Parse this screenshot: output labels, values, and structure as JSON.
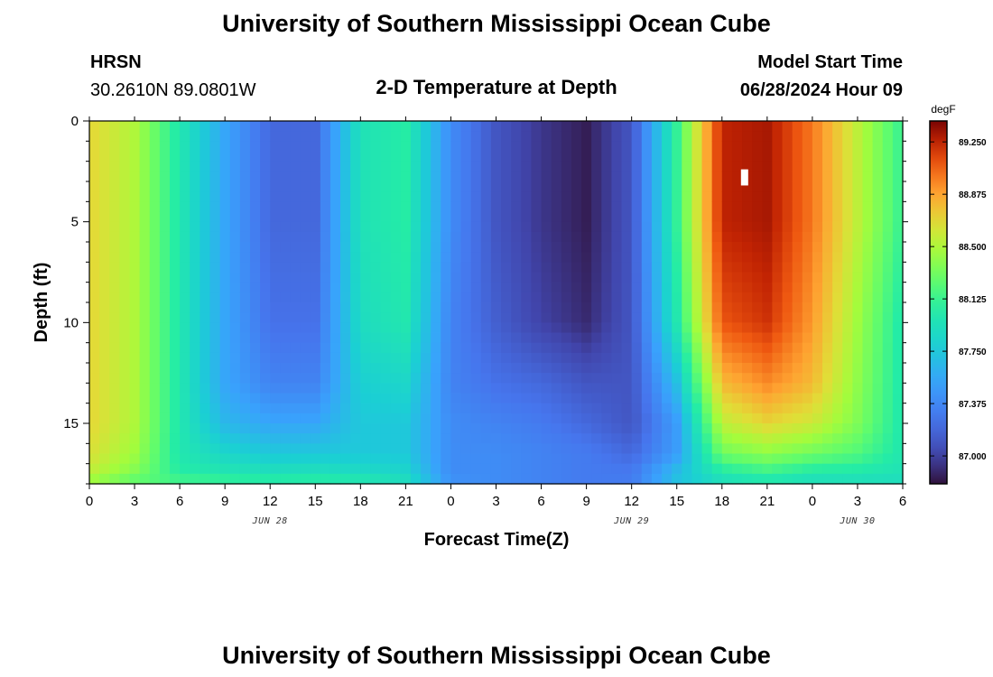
{
  "header": {
    "title": "University of Southern Mississippi Ocean Cube",
    "station": "HRSN",
    "coords": "30.2610N  89.0801W",
    "subtitle": "2-D Temperature at Depth",
    "model_start_label": "Model Start Time",
    "model_start_value": "06/28/2024 Hour 09"
  },
  "footer": {
    "title": "University of Southern Mississippi Ocean Cube"
  },
  "chart_data": {
    "type": "heatmap",
    "xlabel": "Forecast Time(Z)",
    "ylabel": "Depth (ft)",
    "x_range_hours": [
      0,
      54
    ],
    "x_tick_labels": [
      "0",
      "3",
      "6",
      "9",
      "12",
      "15",
      "18",
      "21",
      "0",
      "3",
      "6",
      "9",
      "12",
      "15",
      "18",
      "21",
      "0",
      "3",
      "6"
    ],
    "date_labels": [
      {
        "text": "JUN 28",
        "hour": 12
      },
      {
        "text": "JUN 29",
        "hour": 36
      },
      {
        "text": "JUN 30",
        "hour": 51
      }
    ],
    "ylim": [
      0,
      18
    ],
    "y_ticks": [
      0,
      5,
      10,
      15
    ],
    "colorbar": {
      "unit": "degF",
      "range": [
        86.8,
        89.4
      ],
      "tick_values": [
        87.0,
        87.375,
        87.75,
        88.125,
        88.5,
        88.875,
        89.25
      ],
      "tick_labels": [
        "87.000",
        "87.375",
        "87.750",
        "88.125",
        "88.500",
        "88.875",
        "89.250"
      ]
    },
    "grid": false,
    "time_hours": [
      0,
      3,
      6,
      9,
      12,
      15,
      18,
      21,
      24,
      27,
      30,
      33,
      36,
      39,
      42,
      45,
      48,
      51,
      54
    ],
    "depth_ft": [
      0,
      5,
      10,
      13,
      15,
      16.5,
      17.5,
      18
    ],
    "temperature_degF": [
      [
        88.7,
        88.7,
        88.7,
        88.7,
        88.7,
        88.65,
        88.55,
        88.4
      ],
      [
        88.5,
        88.5,
        88.5,
        88.5,
        88.5,
        88.45,
        88.35,
        88.2
      ],
      [
        88.0,
        88.0,
        88.0,
        88.0,
        88.0,
        88.0,
        88.05,
        88.2
      ],
      [
        87.55,
        87.55,
        87.55,
        87.55,
        87.65,
        87.85,
        88.0,
        88.15
      ],
      [
        87.2,
        87.2,
        87.25,
        87.35,
        87.55,
        87.75,
        87.95,
        88.1
      ],
      [
        87.2,
        87.2,
        87.25,
        87.35,
        87.55,
        87.75,
        87.95,
        88.1
      ],
      [
        87.95,
        87.95,
        87.9,
        87.8,
        87.75,
        87.75,
        87.9,
        88.05
      ],
      [
        88.05,
        88.05,
        88.0,
        87.85,
        87.75,
        87.75,
        87.85,
        87.95
      ],
      [
        87.4,
        87.4,
        87.35,
        87.35,
        87.4,
        87.4,
        87.4,
        87.45
      ],
      [
        87.1,
        87.1,
        87.15,
        87.25,
        87.35,
        87.4,
        87.4,
        87.4
      ],
      [
        86.95,
        86.95,
        87.0,
        87.2,
        87.3,
        87.35,
        87.35,
        87.35
      ],
      [
        86.85,
        86.85,
        86.9,
        87.1,
        87.2,
        87.3,
        87.3,
        87.3
      ],
      [
        87.1,
        87.1,
        87.1,
        87.1,
        87.1,
        87.2,
        87.3,
        87.3
      ],
      [
        88.1,
        88.1,
        88.0,
        87.7,
        87.5,
        87.5,
        87.7,
        87.7
      ],
      [
        89.25,
        89.25,
        89.1,
        88.8,
        88.55,
        88.3,
        88.0,
        87.9
      ],
      [
        89.3,
        89.3,
        89.2,
        88.95,
        88.7,
        88.4,
        88.1,
        87.95
      ],
      [
        89.0,
        89.0,
        88.9,
        88.8,
        88.6,
        88.3,
        88.0,
        87.9
      ],
      [
        88.55,
        88.55,
        88.45,
        88.4,
        88.35,
        88.2,
        88.0,
        87.9
      ],
      [
        88.1,
        88.1,
        88.0,
        88.0,
        88.0,
        88.0,
        87.95,
        87.9
      ]
    ],
    "marker": {
      "hour": 43.5,
      "depth_from": 2.4,
      "depth_to": 3.2
    }
  }
}
